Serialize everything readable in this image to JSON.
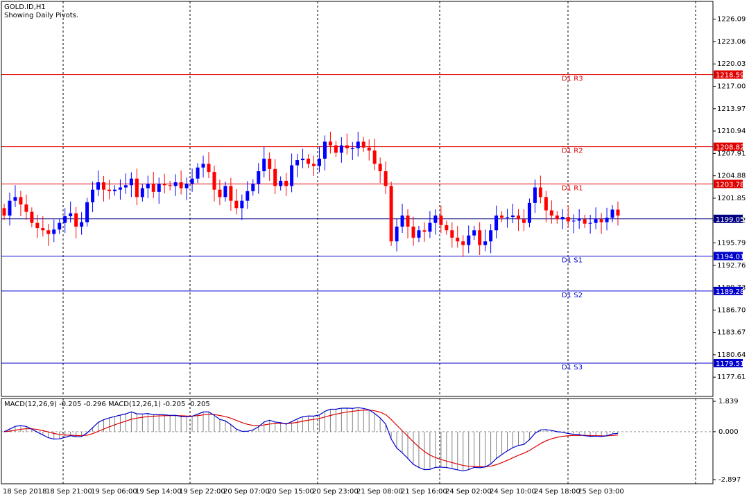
{
  "header": {
    "symbol": "GOLD.ID,H1",
    "subtitle": "Showing Daily Pivots."
  },
  "macd_header": "MACD(12,26,9) -0.205 -0.296 MACD(12,26,1) -0.205 -0.205",
  "chart_data": [
    {
      "type": "candlestick",
      "title": "GOLD.ID,H1",
      "ylim": [
        1175.0,
        1228.5
      ],
      "y_ticks": [
        "1226.09",
        "1223.06",
        "1220.03",
        "1217.00",
        "1213.97",
        "1210.94",
        "1207.91",
        "1204.88",
        "1201.85",
        "1198.82",
        "1195.79",
        "1192.76",
        "1189.73",
        "1186.70",
        "1183.67",
        "1180.64",
        "1177.61"
      ],
      "x_labels": [
        "18 Sep 2018",
        "18 Sep 21:00",
        "19 Sep 06:00",
        "19 Sep 14:00",
        "19 Sep 22:00",
        "20 Sep 07:00",
        "20 Sep 15:00",
        "20 Sep 23:00",
        "21 Sep 08:00",
        "21 Sep 16:00",
        "24 Sep 02:00",
        "24 Sep 10:00",
        "24 Sep 18:00",
        "25 Sep 03:00"
      ],
      "pivot_levels": [
        {
          "name": "D1 R3",
          "value": 1218.59,
          "color": "#e00000"
        },
        {
          "name": "D1 R2",
          "value": 1208.82,
          "color": "#e00000"
        },
        {
          "name": "D1 R1",
          "value": 1203.78,
          "color": "#e00000"
        },
        {
          "name": "",
          "value": 1199.05,
          "color": "#000080"
        },
        {
          "name": "D1 S1",
          "value": 1194.01,
          "color": "#0000cc"
        },
        {
          "name": "D1 S2",
          "value": 1189.28,
          "color": "#0000cc"
        },
        {
          "name": "D1 S3",
          "value": 1179.51,
          "color": "#0000cc"
        }
      ],
      "close": [
        1199.5,
        1201.5,
        1202,
        1201,
        1200,
        1198.5,
        1197.8,
        1197.5,
        1197,
        1197.6,
        1198.5,
        1199.4,
        1199.8,
        1198,
        1198.6,
        1201.3,
        1203,
        1204,
        1203,
        1202.8,
        1203,
        1203.3,
        1203.6,
        1204.5,
        1202,
        1203.2,
        1203.8,
        1202.7,
        1203.8,
        1203.6,
        1203.5,
        1204,
        1203.2,
        1203.8,
        1204.5,
        1206,
        1206.5,
        1205.4,
        1203,
        1202,
        1203.5,
        1201.5,
        1200.5,
        1201.5,
        1202.8,
        1203.8,
        1205.5,
        1207.2,
        1205.8,
        1203.5,
        1204.2,
        1203.5,
        1206.3,
        1207,
        1207.2,
        1206.5,
        1206.2,
        1207.2,
        1209.5,
        1209,
        1208,
        1209,
        1208.6,
        1208.6,
        1209.5,
        1208.7,
        1208.3,
        1206.5,
        1205.5,
        1203.5,
        1196,
        1198,
        1199.5,
        1198,
        1196.5,
        1197.5,
        1197.3,
        1198.5,
        1199.5,
        1198.2,
        1197.5,
        1196.5,
        1196,
        1195.5,
        1196.8,
        1197.5,
        1195.5,
        1196,
        1197.5,
        1199.5,
        1199.2,
        1199.3,
        1199.5,
        1199,
        1198.5,
        1201.2,
        1203.3,
        1202,
        1200.2,
        1199.5,
        1199,
        1199.3,
        1198.7,
        1198.8,
        1199,
        1198.4,
        1198.5,
        1199,
        1198.6,
        1199.2,
        1200.3,
        1199.5
      ],
      "open": [
        1200.5,
        1199.5,
        1201.5,
        1202,
        1201,
        1200,
        1198.5,
        1197.8,
        1197.5,
        1197,
        1197.6,
        1198.5,
        1199.4,
        1199.8,
        1198,
        1198.6,
        1201.3,
        1203,
        1204,
        1203,
        1202.8,
        1203,
        1203.3,
        1203.6,
        1204.5,
        1202,
        1203.2,
        1203.8,
        1202.7,
        1203.8,
        1203.6,
        1203.5,
        1204,
        1203.2,
        1203.8,
        1204.5,
        1206,
        1206.5,
        1205.4,
        1203,
        1202,
        1203.5,
        1201.5,
        1200.5,
        1201.5,
        1202.8,
        1203.8,
        1205.5,
        1207.2,
        1205.8,
        1203.5,
        1204.2,
        1203.5,
        1206.3,
        1207,
        1207.2,
        1206.5,
        1206.2,
        1207.2,
        1209.5,
        1209,
        1208,
        1209,
        1208.6,
        1208.6,
        1209.5,
        1208.7,
        1208.3,
        1206.5,
        1205.5,
        1203.5,
        1196,
        1198,
        1199.5,
        1198,
        1196.5,
        1197.5,
        1197.3,
        1198.5,
        1199.5,
        1198.2,
        1197.5,
        1196.5,
        1196,
        1195.5,
        1196.8,
        1197.5,
        1195.5,
        1196,
        1197.5,
        1199.5,
        1199.2,
        1199.3,
        1199.5,
        1199,
        1198.5,
        1201.2,
        1203.3,
        1202,
        1200.2,
        1199.5,
        1199,
        1199.3,
        1198.7,
        1198.8,
        1199,
        1198.4,
        1198.5,
        1199,
        1198.6,
        1199.2,
        1200.3
      ],
      "bull_color": "#0000ff",
      "bear_color": "#ff0000",
      "grid": true
    },
    {
      "type": "macd",
      "title": "MACD(12,26,9)",
      "ylim": [
        -2.897,
        1.839
      ],
      "y_ticks": [
        "1.839",
        "0.000",
        "-2.897"
      ],
      "macd_line_color": "#0000cc",
      "signal_line_color": "#dd0000",
      "histogram_color": "#808080"
    }
  ]
}
